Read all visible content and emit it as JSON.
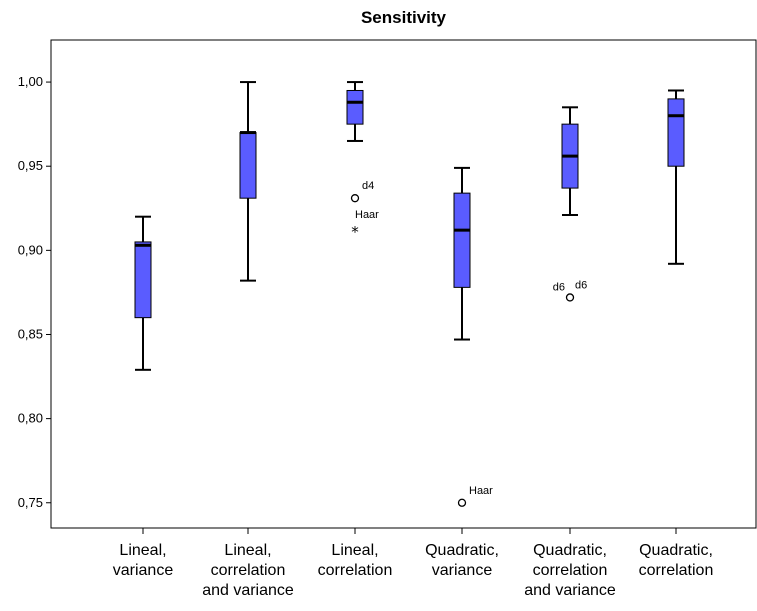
{
  "chart_data": {
    "type": "boxplot",
    "title": "Sensitivity",
    "xlabel": "",
    "ylabel": "",
    "ylim": [
      0.735,
      1.025
    ],
    "yticks": [
      0.75,
      0.8,
      0.85,
      0.9,
      0.95,
      1.0
    ],
    "ytick_labels": [
      "0,75",
      "0,80",
      "0,85",
      "0,90",
      "0,95",
      "1,00"
    ],
    "box_color": "#5a5cff",
    "categories": [
      [
        "Lineal,",
        "variance"
      ],
      [
        "Lineal,",
        "correlation",
        "and variance"
      ],
      [
        "Lineal,",
        "correlation"
      ],
      [
        "Quadratic,",
        "variance"
      ],
      [
        "Quadratic,",
        "correlation",
        "and variance"
      ],
      [
        "Quadratic,",
        "correlation"
      ]
    ],
    "boxes": [
      {
        "whisker_low": 0.829,
        "q1": 0.86,
        "median": 0.903,
        "q3": 0.905,
        "whisker_high": 0.92,
        "outliers": []
      },
      {
        "whisker_low": 0.882,
        "q1": 0.931,
        "median": 0.97,
        "q3": 0.97,
        "whisker_high": 1.0,
        "outliers": []
      },
      {
        "whisker_low": 0.965,
        "q1": 0.975,
        "median": 0.988,
        "q3": 0.995,
        "whisker_high": 1.0,
        "outliers": [
          {
            "value": 0.931,
            "marker": "circle",
            "labels": [
              "d4"
            ]
          },
          {
            "value": 0.912,
            "marker": "star",
            "labels": [
              "Haar"
            ]
          }
        ]
      },
      {
        "whisker_low": 0.847,
        "q1": 0.878,
        "median": 0.912,
        "q3": 0.934,
        "whisker_high": 0.949,
        "outliers": [
          {
            "value": 0.75,
            "marker": "circle",
            "labels": [
              "Haar"
            ]
          }
        ]
      },
      {
        "whisker_low": 0.921,
        "q1": 0.937,
        "median": 0.956,
        "q3": 0.975,
        "whisker_high": 0.985,
        "outliers": [
          {
            "value": 0.872,
            "marker": "circle",
            "labels": [
              "d6",
              "d6"
            ]
          }
        ]
      },
      {
        "whisker_low": 0.892,
        "q1": 0.95,
        "median": 0.98,
        "q3": 0.99,
        "whisker_high": 0.995,
        "outliers": []
      }
    ]
  }
}
